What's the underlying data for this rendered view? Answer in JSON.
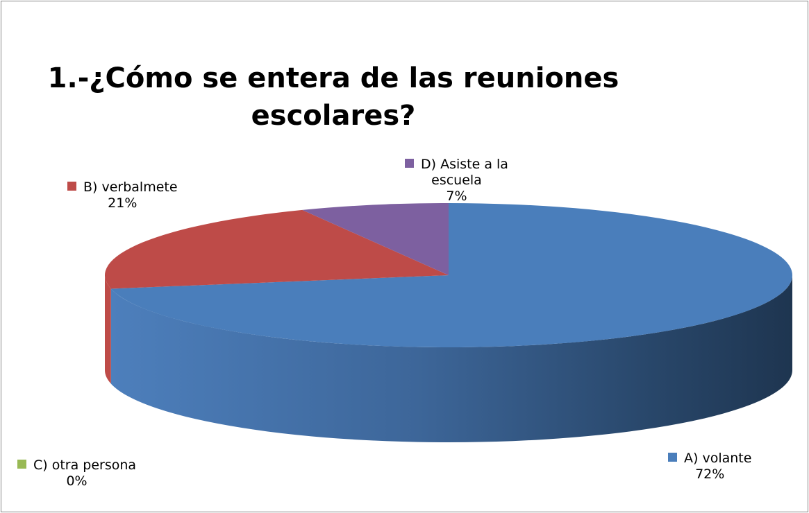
{
  "chart_data": {
    "type": "pie",
    "title_lines": [
      "1.-¿Cómo se entera de las reuniones",
      "escolares?"
    ],
    "categories": [
      "A) volante",
      "B) verbalmete",
      "C) otra persona",
      "D) Asiste a la escuela"
    ],
    "values": [
      72,
      21,
      0,
      7
    ],
    "value_labels": [
      "72%",
      "21%",
      "0%",
      "7%"
    ],
    "colors": [
      "#4a7ebb",
      "#be4b48",
      "#98b954",
      "#7d60a0"
    ],
    "style": "3D pie"
  }
}
